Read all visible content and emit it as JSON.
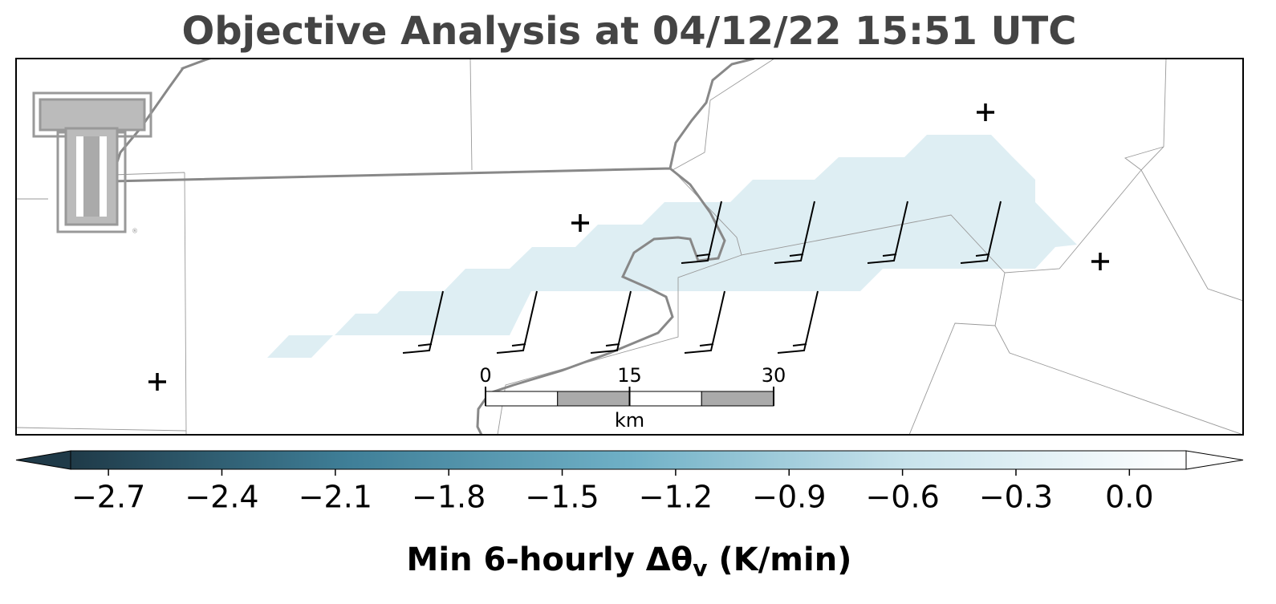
{
  "chart_data": {
    "type": "map",
    "title": "Objective Analysis at 04/12/22 15:51 UTC",
    "colorbar": {
      "lim": [
        -2.8,
        0.15
      ],
      "ticks": [
        {
          "value": -2.7,
          "label": "−2.7"
        },
        {
          "value": -2.4,
          "label": "−2.4"
        },
        {
          "value": -2.1,
          "label": "−2.1"
        },
        {
          "value": -1.8,
          "label": "−1.8"
        },
        {
          "value": -1.5,
          "label": "−1.5"
        },
        {
          "value": -1.2,
          "label": "−1.2"
        },
        {
          "value": -0.9,
          "label": "−0.9"
        },
        {
          "value": -0.6,
          "label": "−0.6"
        },
        {
          "value": -0.3,
          "label": "−0.3"
        },
        {
          "value": 0,
          "label": "0.0"
        }
      ],
      "colors": [
        "#1f3a48",
        "#3f7f98",
        "#6fb0c6",
        "#c8e3ec",
        "#ffffff"
      ],
      "label": {
        "main": "Min 6-hourly Δθ",
        "sub": "v",
        "suffix": " (K/min)"
      }
    },
    "scale_bar": {
      "lim": [
        0,
        30
      ],
      "ticks": [
        0,
        15,
        30
      ],
      "unit": "km"
    },
    "shade_color": "#deeef3"
  }
}
